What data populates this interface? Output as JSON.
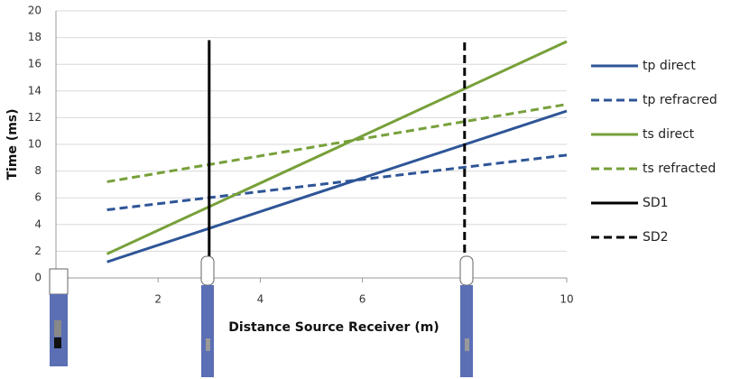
{
  "chart_data": {
    "type": "line",
    "x_label": "Distance  Source Receiver (m)",
    "y_label": "Time (ms)",
    "xlim": [
      0,
      10
    ],
    "xticks": [
      2,
      4,
      6,
      10
    ],
    "ylim": [
      0,
      20
    ],
    "yticks": [
      0,
      2,
      4,
      6,
      8,
      10,
      12,
      14,
      16,
      18,
      20
    ],
    "grid": true,
    "legend": "right",
    "series": [
      {
        "name": "tp direct",
        "color": "#2e5597",
        "dashed": false,
        "x": [
          1,
          10
        ],
        "values": [
          1.2,
          12.5
        ]
      },
      {
        "name": "tp refracred",
        "color": "#2e5597",
        "dashed": true,
        "x": [
          1,
          10
        ],
        "values": [
          5.1,
          9.2
        ]
      },
      {
        "name": "ts direct",
        "color": "#77a03a",
        "dashed": false,
        "x": [
          1,
          10
        ],
        "values": [
          1.8,
          17.7
        ]
      },
      {
        "name": "ts refracted",
        "color": "#77a03a",
        "dashed": true,
        "x": [
          1,
          10
        ],
        "values": [
          7.2,
          13.0
        ]
      },
      {
        "name": "SD1",
        "color": "#000000",
        "dashed": false,
        "x": [
          3,
          3
        ],
        "values": [
          0,
          17.8
        ]
      },
      {
        "name": "SD2",
        "color": "#000000",
        "dashed": true,
        "x": [
          8,
          8
        ],
        "values": [
          0,
          17.8
        ]
      }
    ]
  }
}
